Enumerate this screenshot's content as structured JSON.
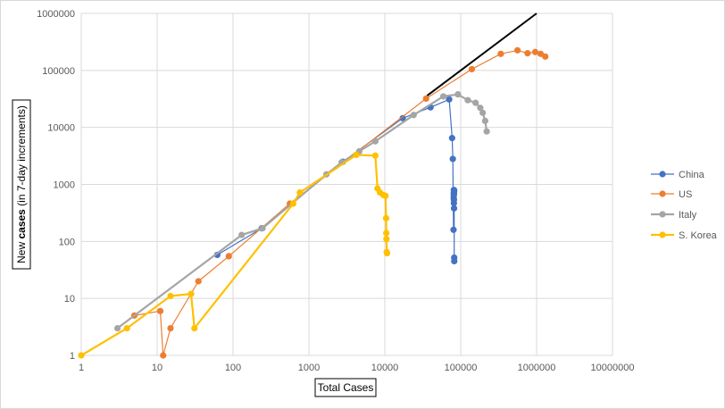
{
  "chart_data": {
    "type": "line",
    "xlabel": "Total Cases",
    "ylabel": {
      "pre": "New ",
      "bold": "cases",
      "post": " (in 7-day increments)"
    },
    "x_scale": "log",
    "y_scale": "log",
    "xlim": [
      1,
      10000000
    ],
    "ylim": [
      1,
      1000000
    ],
    "x_ticks": [
      "1",
      "10",
      "100",
      "1000",
      "10000",
      "100000",
      "1000000",
      "10000000"
    ],
    "y_ticks": [
      "1",
      "10",
      "100",
      "1000",
      "10000",
      "100000",
      "1000000"
    ],
    "grid": true,
    "legend_position": "right",
    "reference_line": {
      "color": "#000000",
      "x": [
        36000,
        1000000
      ],
      "y": [
        36000,
        1000000
      ]
    },
    "series": [
      {
        "name": "China",
        "color": "#4472C4",
        "x": [
          62,
          239,
          2800,
          17200,
          40000,
          70500,
          77000,
          78700,
          80400,
          80800,
          81000,
          81100,
          81200,
          81300,
          81400,
          81500,
          81700,
          81900,
          82000,
          82100,
          82200
        ],
        "y": [
          58,
          170,
          2500,
          14500,
          22500,
          31000,
          6500,
          2800,
          160,
          580,
          650,
          720,
          800,
          470,
          540,
          680,
          380,
          760,
          790,
          52,
          45
        ]
      },
      {
        "name": "US",
        "color": "#ED7D31",
        "x": [
          5,
          11,
          12,
          15,
          35,
          88,
          560,
          35000,
          140000,
          337000,
          560000,
          760000,
          960000,
          1130000,
          1300000
        ],
        "y": [
          5,
          6,
          1,
          3,
          20,
          55,
          460,
          32000,
          105000,
          195000,
          225000,
          200000,
          210000,
          195000,
          175000
        ]
      },
      {
        "name": "Italy",
        "color": "#A5A5A5",
        "x": [
          3,
          130,
          245,
          1700,
          2700,
          4600,
          7500,
          24000,
          59000,
          92000,
          124000,
          157000,
          181000,
          195000,
          210000,
          220000
        ],
        "y": [
          3,
          130,
          170,
          1500,
          2450,
          3800,
          5700,
          16500,
          35000,
          38000,
          30000,
          27000,
          22000,
          18000,
          13000,
          8500
        ]
      },
      {
        "name": "S. Korea",
        "color": "#FFC000",
        "x": [
          1,
          4,
          15,
          28,
          31,
          620,
          760,
          4200,
          7500,
          8000,
          8650,
          9600,
          10200,
          10400,
          10450,
          10500,
          10600,
          10700
        ],
        "y": [
          1,
          3,
          11,
          12,
          3,
          460,
          720,
          3300,
          3200,
          850,
          720,
          650,
          630,
          255,
          140,
          110,
          65,
          62
        ]
      }
    ]
  }
}
